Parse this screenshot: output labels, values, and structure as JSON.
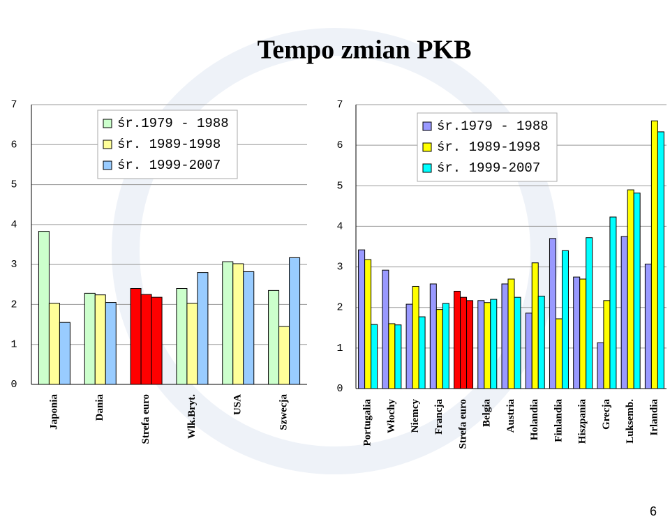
{
  "slide": {
    "title": "Tempo zmian PKB",
    "page_number": "6"
  },
  "chart_data": [
    {
      "type": "bar",
      "categories": [
        "Japonia",
        "Dania",
        "Strefa euro",
        "Wlk.Bryt.",
        "USA",
        "Szwecja"
      ],
      "series": [
        {
          "name": "śr.1979 - 1988",
          "color": "#ccffcc",
          "values": [
            3.83,
            2.28,
            2.4,
            2.4,
            3.07,
            2.35
          ]
        },
        {
          "name": "śr. 1989-1998",
          "color": "#ffff99",
          "values": [
            2.03,
            2.24,
            2.25,
            2.03,
            3.02,
            1.45
          ]
        },
        {
          "name": "śr. 1999-2007",
          "color": "#99ccff",
          "values": [
            1.55,
            2.05,
            2.18,
            2.8,
            2.82,
            3.17
          ]
        }
      ],
      "highlight_category": 2,
      "highlight_color": "#ff0000",
      "ylim": [
        0,
        7
      ],
      "yticks": [
        0,
        1,
        2,
        3,
        4,
        5,
        6,
        7
      ],
      "grid": true,
      "legend": "top"
    },
    {
      "type": "bar",
      "categories": [
        "Portugalia",
        "Włochy",
        "Niemcy",
        "Francja",
        "Strefa euro",
        "Belgia",
        "Austria",
        "Holandia",
        "Finlandia",
        "Hiszpania",
        "Grecja",
        "Luksemb.",
        "Irlandia"
      ],
      "series": [
        {
          "name": "śr.1979 - 1988",
          "color": "#9999ff",
          "values": [
            3.42,
            2.92,
            2.08,
            2.58,
            2.4,
            2.17,
            2.58,
            1.86,
            3.7,
            2.75,
            1.13,
            3.75,
            3.07
          ]
        },
        {
          "name": "śr. 1989-1998",
          "color": "#ffff00",
          "values": [
            3.18,
            1.6,
            2.52,
            1.95,
            2.25,
            2.12,
            2.7,
            3.1,
            1.72,
            2.7,
            2.17,
            4.9,
            6.6
          ]
        },
        {
          "name": "śr. 1999-2007",
          "color": "#00ffff",
          "values": [
            1.58,
            1.57,
            1.77,
            2.1,
            2.17,
            2.2,
            2.25,
            2.28,
            3.4,
            3.72,
            4.23,
            4.82,
            6.33
          ]
        }
      ],
      "highlight_category": 4,
      "highlight_color": "#ff0000",
      "ylim": [
        0,
        7
      ],
      "yticks": [
        0,
        1,
        2,
        3,
        4,
        5,
        6,
        7
      ],
      "grid": true,
      "legend": "top"
    }
  ]
}
